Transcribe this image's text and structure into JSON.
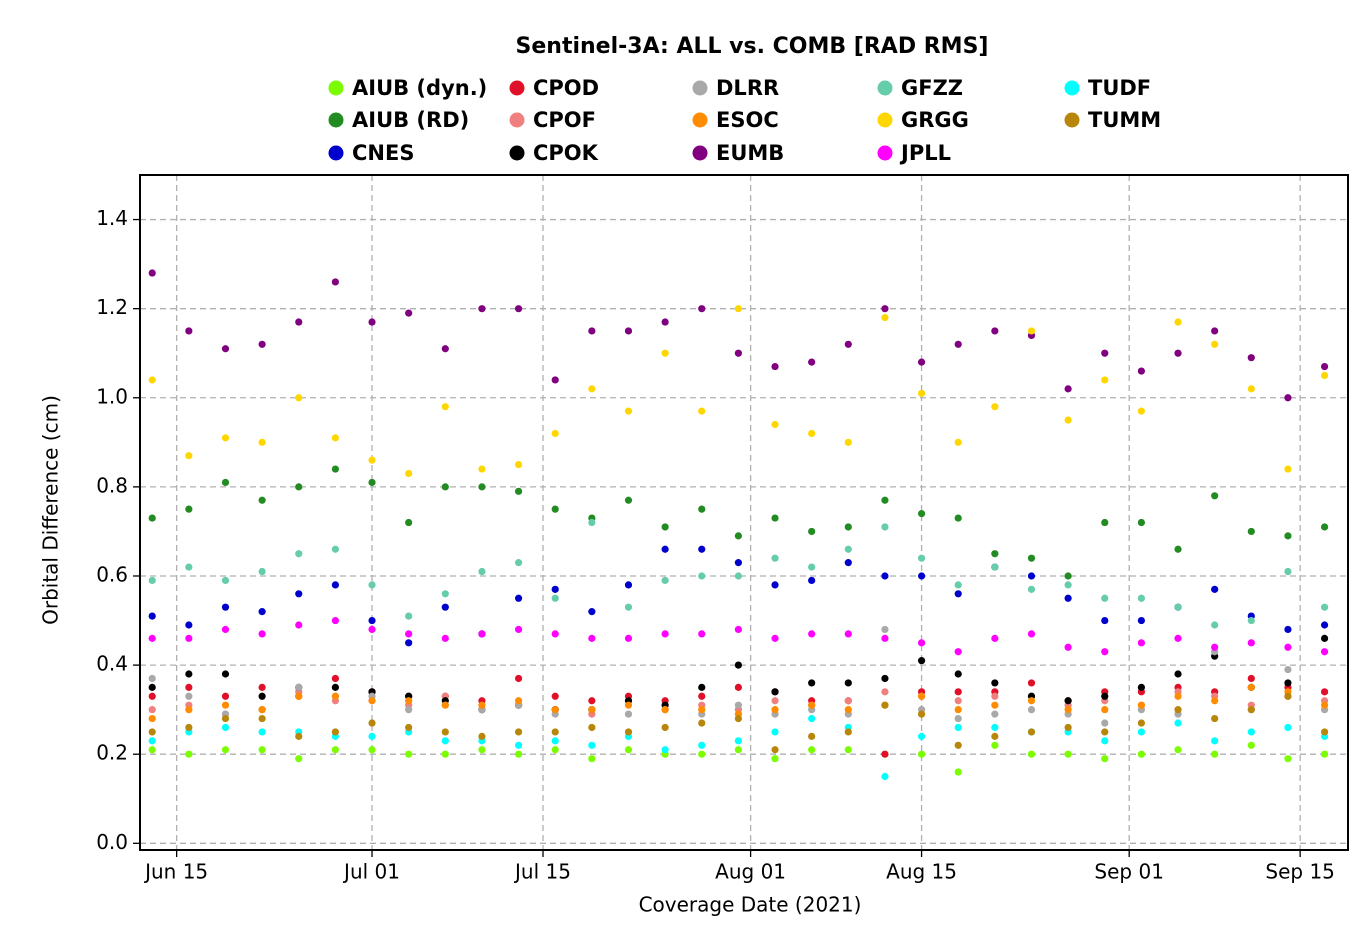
{
  "chart_data": {
    "type": "scatter",
    "title": "Sentinel-3A: ALL vs. COMB [RAD RMS]",
    "x_label": "Coverage Date (2021)",
    "y_label": "Orbital Difference (cm)",
    "x": [
      "2021-06-13",
      "2021-06-16",
      "2021-06-19",
      "2021-06-22",
      "2021-06-25",
      "2021-06-28",
      "2021-07-01",
      "2021-07-04",
      "2021-07-07",
      "2021-07-10",
      "2021-07-13",
      "2021-07-16",
      "2021-07-19",
      "2021-07-22",
      "2021-07-25",
      "2021-07-28",
      "2021-07-31",
      "2021-08-03",
      "2021-08-06",
      "2021-08-09",
      "2021-08-12",
      "2021-08-15",
      "2021-08-18",
      "2021-08-21",
      "2021-08-24",
      "2021-08-27",
      "2021-08-30",
      "2021-09-02",
      "2021-09-05",
      "2021-09-08",
      "2021-09-11",
      "2021-09-14",
      "2021-09-17"
    ],
    "xlim": [
      "2021-06-12",
      "2021-09-19"
    ],
    "xticks": [
      {
        "value": "2021-06-15",
        "label": "Jun 15"
      },
      {
        "value": "2021-07-01",
        "label": "Jul 01"
      },
      {
        "value": "2021-07-15",
        "label": "Jul 15"
      },
      {
        "value": "2021-08-01",
        "label": "Aug 01"
      },
      {
        "value": "2021-08-15",
        "label": "Aug 15"
      },
      {
        "value": "2021-09-01",
        "label": "Sep 01"
      },
      {
        "value": "2021-09-15",
        "label": "Sep 15"
      }
    ],
    "ylim": [
      -0.015,
      1.5
    ],
    "yticks": [
      {
        "value": 0,
        "label": "0.0"
      },
      0.2,
      0.4,
      0.6,
      0.8,
      {
        "value": 1,
        "label": "1.0"
      },
      1.2,
      1.4
    ],
    "grid": true,
    "series": [
      {
        "name": "AIUB (dyn.)",
        "color": "#7cfc00",
        "values": [
          0.21,
          0.2,
          0.21,
          0.21,
          0.19,
          0.21,
          0.21,
          0.2,
          0.2,
          0.21,
          0.2,
          0.21,
          0.19,
          0.21,
          0.2,
          0.2,
          0.21,
          0.19,
          0.21,
          0.21,
          0.2,
          0.2,
          0.16,
          0.22,
          0.2,
          0.2,
          0.19,
          0.2,
          0.21,
          0.2,
          0.22,
          0.19,
          0.2
        ]
      },
      {
        "name": "AIUB (RD)",
        "color": "#228b22",
        "values": [
          0.73,
          0.75,
          0.81,
          0.77,
          0.8,
          0.84,
          0.81,
          0.72,
          0.8,
          0.8,
          0.79,
          0.75,
          0.73,
          0.77,
          0.71,
          0.75,
          0.69,
          0.73,
          0.7,
          0.71,
          0.77,
          0.74,
          0.73,
          0.65,
          0.64,
          0.6,
          0.72,
          0.72,
          0.66,
          0.78,
          0.7,
          0.69,
          0.71
        ]
      },
      {
        "name": "CNES",
        "color": "#0000cd",
        "values": [
          0.51,
          0.49,
          0.53,
          0.52,
          0.56,
          0.58,
          0.5,
          0.45,
          0.53,
          0.47,
          0.55,
          0.57,
          0.52,
          0.58,
          0.66,
          0.66,
          0.63,
          0.58,
          0.59,
          0.63,
          0.6,
          0.6,
          0.56,
          0.62,
          0.6,
          0.55,
          0.5,
          0.5,
          0.53,
          0.57,
          0.51,
          0.48,
          0.49
        ]
      },
      {
        "name": "CPOD",
        "color": "#e0102a",
        "values": [
          0.33,
          0.35,
          0.33,
          0.35,
          0.33,
          0.37,
          0.34,
          0.33,
          0.33,
          0.32,
          0.37,
          0.33,
          0.32,
          0.33,
          0.32,
          0.33,
          0.35,
          0.34,
          0.32,
          0.32,
          0.2,
          0.34,
          0.34,
          0.34,
          0.36,
          0.32,
          0.34,
          0.34,
          0.35,
          0.34,
          0.37,
          0.35,
          0.34
        ]
      },
      {
        "name": "CPOF",
        "color": "#f08080",
        "values": [
          0.3,
          0.31,
          0.29,
          0.3,
          0.34,
          0.32,
          0.32,
          0.31,
          0.33,
          0.3,
          0.31,
          0.3,
          0.29,
          0.32,
          0.3,
          0.31,
          0.3,
          0.32,
          0.31,
          0.32,
          0.34,
          0.33,
          0.32,
          0.33,
          0.33,
          0.31,
          0.32,
          0.31,
          0.34,
          0.33,
          0.31,
          0.33,
          0.32
        ]
      },
      {
        "name": "CPOK",
        "color": "#000000",
        "values": [
          0.35,
          0.38,
          0.38,
          0.33,
          0.35,
          0.35,
          0.34,
          0.33,
          0.32,
          0.3,
          0.31,
          0.3,
          0.3,
          0.32,
          0.31,
          0.35,
          0.4,
          0.34,
          0.36,
          0.36,
          0.37,
          0.41,
          0.38,
          0.36,
          0.33,
          0.32,
          0.33,
          0.35,
          0.38,
          0.42,
          0.35,
          0.36,
          0.46
        ]
      },
      {
        "name": "DLRR",
        "color": "#a9a9a9",
        "values": [
          0.37,
          0.33,
          0.29,
          0.3,
          0.35,
          0.33,
          0.33,
          0.3,
          0.31,
          0.3,
          0.31,
          0.29,
          0.3,
          0.29,
          0.3,
          0.29,
          0.31,
          0.29,
          0.3,
          0.29,
          0.48,
          0.3,
          0.28,
          0.29,
          0.3,
          0.29,
          0.27,
          0.3,
          0.29,
          0.43,
          0.3,
          0.39,
          0.3
        ]
      },
      {
        "name": "ESOC",
        "color": "#ff8c00",
        "values": [
          0.28,
          0.3,
          0.31,
          0.3,
          0.33,
          0.33,
          0.32,
          0.32,
          0.31,
          0.31,
          0.32,
          0.3,
          0.3,
          0.31,
          0.3,
          0.3,
          0.29,
          0.3,
          0.31,
          0.3,
          0.31,
          0.33,
          0.3,
          0.31,
          0.32,
          0.3,
          0.3,
          0.31,
          0.33,
          0.32,
          0.35,
          0.34,
          0.31
        ]
      },
      {
        "name": "EUMB",
        "color": "#800080",
        "values": [
          1.28,
          1.15,
          1.11,
          1.12,
          1.17,
          1.26,
          1.17,
          1.19,
          1.11,
          1.2,
          1.2,
          1.04,
          1.15,
          1.15,
          1.17,
          1.2,
          1.1,
          1.07,
          1.08,
          1.12,
          1.2,
          1.08,
          1.12,
          1.15,
          1.14,
          1.02,
          1.1,
          1.06,
          1.1,
          1.15,
          1.09,
          1.0,
          1.07
        ]
      },
      {
        "name": "GFZZ",
        "color": "#66cdaa",
        "values": [
          0.59,
          0.62,
          0.59,
          0.61,
          0.65,
          0.66,
          0.58,
          0.51,
          0.56,
          0.61,
          0.63,
          0.55,
          0.72,
          0.53,
          0.59,
          0.6,
          0.6,
          0.64,
          0.62,
          0.66,
          0.71,
          0.64,
          0.58,
          0.62,
          0.57,
          0.58,
          0.55,
          0.55,
          0.53,
          0.49,
          0.5,
          0.61,
          0.53
        ]
      },
      {
        "name": "GRGG",
        "color": "#ffd700",
        "values": [
          1.04,
          0.87,
          0.91,
          0.9,
          1.0,
          0.91,
          0.86,
          0.83,
          0.98,
          0.84,
          0.85,
          0.92,
          1.02,
          0.97,
          1.1,
          0.97,
          1.2,
          0.94,
          0.92,
          0.9,
          1.18,
          1.01,
          0.9,
          0.98,
          1.15,
          0.95,
          1.04,
          0.97,
          1.17,
          1.12,
          1.02,
          0.84,
          1.05
        ]
      },
      {
        "name": "JPLL",
        "color": "#ff00ff",
        "values": [
          0.46,
          0.46,
          0.48,
          0.47,
          0.49,
          0.5,
          0.48,
          0.47,
          0.46,
          0.47,
          0.48,
          0.47,
          0.46,
          0.46,
          0.47,
          0.47,
          0.48,
          0.46,
          0.47,
          0.47,
          0.46,
          0.45,
          0.43,
          0.46,
          0.47,
          0.44,
          0.43,
          0.45,
          0.46,
          0.44,
          0.45,
          0.44,
          0.43
        ]
      },
      {
        "name": "TUDF",
        "color": "#00ffff",
        "values": [
          0.23,
          0.25,
          0.26,
          0.25,
          0.25,
          0.24,
          0.24,
          0.25,
          0.23,
          0.23,
          0.22,
          0.23,
          0.22,
          0.24,
          0.21,
          0.22,
          0.23,
          0.25,
          0.28,
          0.26,
          0.15,
          0.24,
          0.26,
          0.26,
          0.25,
          0.25,
          0.23,
          0.25,
          0.27,
          0.23,
          0.25,
          0.26,
          0.24
        ]
      },
      {
        "name": "TUMM",
        "color": "#b8860b",
        "values": [
          0.25,
          0.26,
          0.28,
          0.28,
          0.24,
          0.25,
          0.27,
          0.26,
          0.25,
          0.24,
          0.25,
          0.25,
          0.26,
          0.25,
          0.26,
          0.27,
          0.28,
          0.21,
          0.24,
          0.25,
          0.31,
          0.29,
          0.22,
          0.24,
          0.25,
          0.26,
          0.25,
          0.27,
          0.3,
          0.28,
          0.3,
          0.33,
          0.25
        ]
      }
    ]
  }
}
